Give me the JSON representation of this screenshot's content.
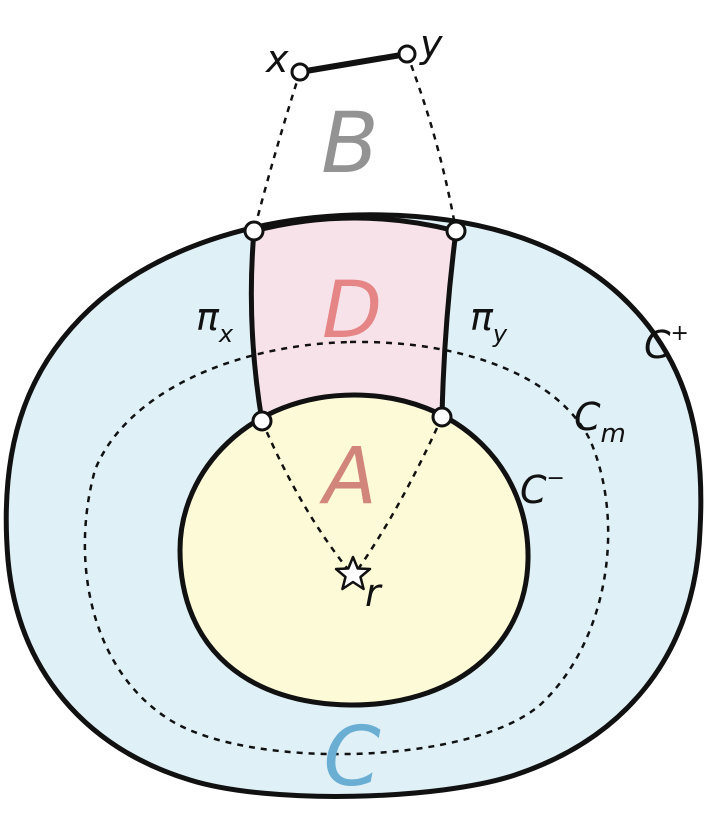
{
  "colors": {
    "outer_fill": "#dff0f6",
    "inner_fill": "#fdfad8",
    "region_d_fill": "#f8e2ea",
    "region_b_label": "#939393",
    "region_d_label": "#e58585",
    "region_a_label": "#d2857a",
    "region_c_label": "#6aaed4",
    "stroke": "#111111"
  },
  "regions": {
    "A": "A",
    "B": "B",
    "C": "C",
    "D": "D"
  },
  "curves": {
    "outer": {
      "name": "C",
      "sup": "+"
    },
    "inner": {
      "name": "C",
      "sup": "−"
    },
    "middle": {
      "name": "C",
      "sub": "m"
    }
  },
  "paths": {
    "px": {
      "name": "π",
      "sub": "x"
    },
    "py": {
      "name": "π",
      "sub": "y"
    }
  },
  "points": {
    "x": "x",
    "y": "y",
    "r": "r"
  },
  "root_icon": "star-icon"
}
